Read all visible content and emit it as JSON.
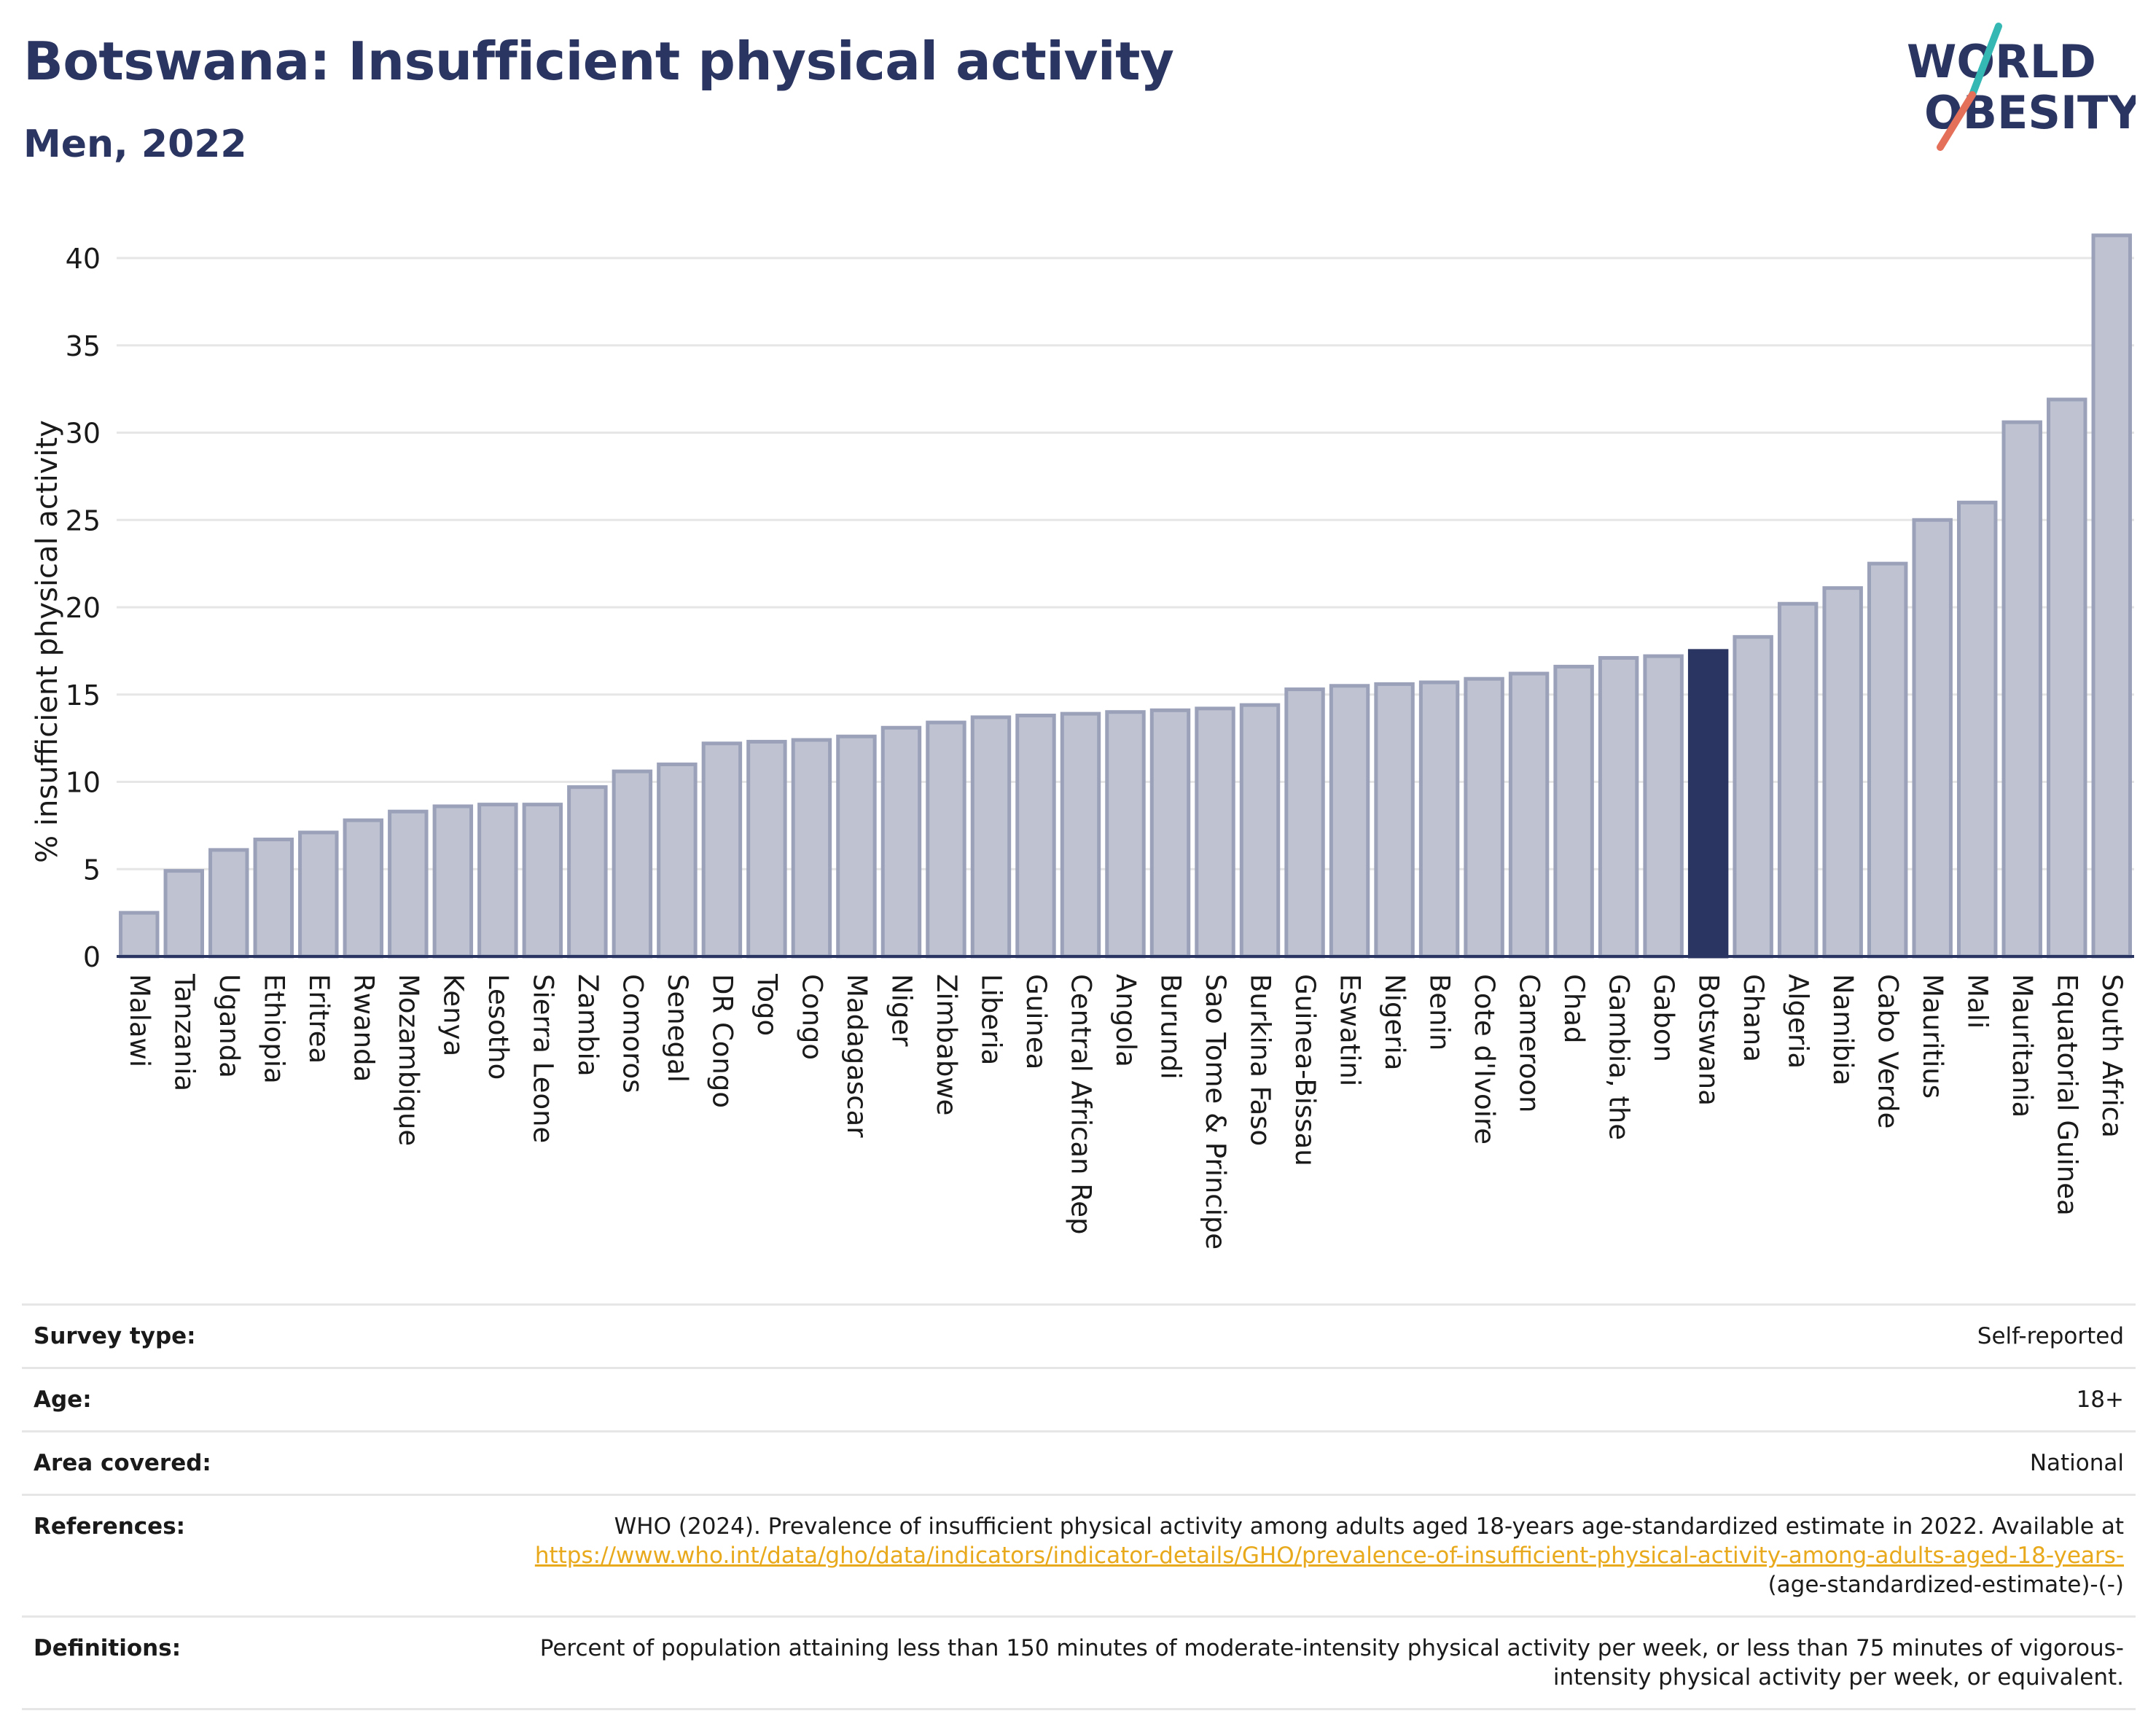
{
  "header": {
    "title": "Botswana: Insufficient physical activity",
    "subtitle": "Men, 2022"
  },
  "logo": {
    "line1": "WORLD",
    "line2": "OBESITY",
    "colors": {
      "text": "#2b3562",
      "slash_teal": "#35b8b3",
      "slash_coral": "#e4705a"
    }
  },
  "colors": {
    "bar_default": "#bfc3d1",
    "bar_default_stroke": "#9aa1b9",
    "bar_highlight": "#2b3562",
    "axis": "#2b3562",
    "grid": "#e6e6e6"
  },
  "chart_data": {
    "type": "bar",
    "ylabel": "% insufficient physical activity",
    "ylim": [
      0,
      42
    ],
    "yticks": [
      0,
      5,
      10,
      15,
      20,
      25,
      30,
      35,
      40
    ],
    "grid": true,
    "highlight": "Botswana",
    "categories": [
      "Malawi",
      "Tanzania",
      "Uganda",
      "Ethiopia",
      "Eritrea",
      "Rwanda",
      "Mozambique",
      "Kenya",
      "Lesotho",
      "Sierra Leone",
      "Zambia",
      "Comoros",
      "Senegal",
      "DR Congo",
      "Togo",
      "Congo",
      "Madagascar",
      "Niger",
      "Zimbabwe",
      "Liberia",
      "Guinea",
      "Central African Rep",
      "Angola",
      "Burundi",
      "Sao Tome & Principe",
      "Burkina Faso",
      "Guinea-Bissau",
      "Eswatini",
      "Nigeria",
      "Benin",
      "Cote d'Ivoire",
      "Cameroon",
      "Chad",
      "Gambia, the",
      "Gabon",
      "Botswana",
      "Ghana",
      "Algeria",
      "Namibia",
      "Cabo Verde",
      "Mauritius",
      "Mali",
      "Mauritania",
      "Equatorial Guinea",
      "South Africa"
    ],
    "values": [
      2.5,
      4.9,
      6.1,
      6.7,
      7.1,
      7.8,
      8.3,
      8.6,
      8.7,
      8.7,
      9.7,
      10.6,
      11.0,
      12.2,
      12.3,
      12.4,
      12.6,
      13.1,
      13.4,
      13.7,
      13.8,
      13.9,
      14.0,
      14.1,
      14.2,
      14.4,
      15.3,
      15.5,
      15.6,
      15.7,
      15.9,
      16.2,
      16.6,
      17.1,
      17.2,
      17.5,
      18.3,
      20.2,
      21.1,
      22.5,
      25.0,
      26.0,
      30.6,
      31.9,
      41.3
    ]
  },
  "info": {
    "survey_type_label": "Survey type:",
    "survey_type_value": "Self-reported",
    "age_label": "Age:",
    "age_value": "18+",
    "area_label": "Area covered:",
    "area_value": "National",
    "references_label": "References:",
    "references_text": "WHO (2024). Prevalence of insufficient physical activity among adults aged 18-years age-standardized estimate in 2022. Available at",
    "references_link": "https://www.who.int/data/gho/data/indicators/indicator-details/GHO/prevalence-of-insufficient-physical-activity-among-adults-aged-18-years-",
    "references_tail": "(age-standardized-estimate)-(-)",
    "definitions_label": "Definitions:",
    "definitions_text": "Percent of population attaining less than 150 minutes of moderate-intensity physical activity per week, or less than 75 minutes of vigorous-intensity physical activity per week, or equivalent."
  }
}
